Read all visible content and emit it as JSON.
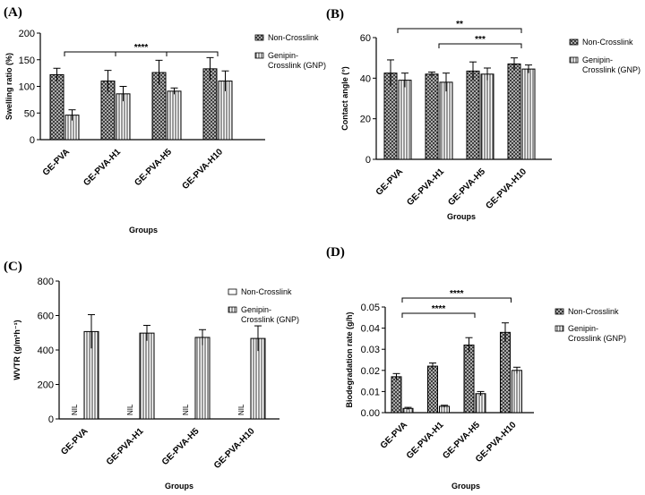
{
  "chart_data": [
    {
      "panel": "(A)",
      "type": "bar",
      "categories": [
        "GE-PVA",
        "GE-PVA-H1",
        "GE-PVA-H5",
        "GE-PVA-H10"
      ],
      "xlabel": "Groups",
      "ylabel": "Swelling ratio (%)",
      "ylim": [
        0,
        200
      ],
      "yticks": [
        "0",
        "50",
        "100",
        "150",
        "200"
      ],
      "grid": false,
      "legend_position": "right",
      "series": [
        {
          "name": "Non-Crosslink",
          "values": [
            122,
            110,
            126,
            133
          ],
          "errors": [
            12,
            20,
            23,
            21
          ],
          "color": "#555555",
          "pattern": "crosshatch"
        },
        {
          "name": "Genipin- Crosslink (GNP)",
          "values": [
            46,
            86,
            91,
            110
          ],
          "errors": [
            10,
            14,
            6,
            19
          ],
          "color": "#777777",
          "pattern": "vertical"
        }
      ],
      "significance": [
        {
          "label": "****",
          "from": 0,
          "to": 3
        }
      ]
    },
    {
      "panel": "(B)",
      "type": "bar",
      "categories": [
        "GE-PVA",
        "GE-PVA-H1",
        "GE-PVA-H5",
        "GE-PVA-H10"
      ],
      "xlabel": "Groups",
      "ylabel": "Contact angle (°)",
      "ylim": [
        0,
        60
      ],
      "yticks": [
        "0",
        "20",
        "40",
        "60"
      ],
      "grid": false,
      "legend_position": "right",
      "series": [
        {
          "name": "Non-Crosslink",
          "values": [
            42.5,
            42,
            43.5,
            47
          ],
          "errors": [
            6.5,
            1,
            4.5,
            3
          ],
          "color": "#555555",
          "pattern": "crosshatch"
        },
        {
          "name": "Genipin- Crosslink (GNP)",
          "values": [
            39,
            38,
            42,
            44.5
          ],
          "errors": [
            3.5,
            4.5,
            3,
            2
          ],
          "color": "#777777",
          "pattern": "vertical"
        }
      ],
      "significance": [
        {
          "label": "**",
          "from": 0,
          "to": 3
        },
        {
          "label": "***",
          "from": 1,
          "to": 3
        }
      ]
    },
    {
      "panel": "(C)",
      "type": "bar",
      "categories": [
        "GE-PVA",
        "GE-PVA-H1",
        "GE-PVA-H5",
        "GE-PVA-H10"
      ],
      "xlabel": "Groups",
      "ylabel": "WVTR (g/m²h⁻¹)",
      "ylim": [
        0,
        800
      ],
      "yticks": [
        "0",
        "200",
        "400",
        "600",
        "800"
      ],
      "grid": false,
      "legend_position": "right",
      "series": [
        {
          "name": "Non-Crosslink",
          "values": [
            null,
            null,
            null,
            null
          ],
          "errors": [
            0,
            0,
            0,
            0
          ],
          "color": "#555555",
          "pattern": "open",
          "value_labels": [
            "NIL",
            "NIL",
            "NIL",
            "NIL"
          ]
        },
        {
          "name": "Genipin- Crosslink (GNP)",
          "values": [
            507,
            498,
            473,
            467
          ],
          "errors": [
            98,
            45,
            45,
            73
          ],
          "color": "#777777",
          "pattern": "vertical"
        }
      ],
      "significance": []
    },
    {
      "panel": "(D)",
      "type": "bar",
      "categories": [
        "GE-PVA",
        "GE-PVA-H1",
        "GE-PVA-H5",
        "GE-PVA-H10"
      ],
      "xlabel": "Groups",
      "ylabel": "Biodegradation rate (g/h)",
      "ylim": [
        0,
        0.05
      ],
      "yticks": [
        "0.00",
        "0.01",
        "0.02",
        "0.03",
        "0.04",
        "0.05"
      ],
      "grid": false,
      "legend_position": "right",
      "series": [
        {
          "name": "Non-Crosslink",
          "values": [
            0.017,
            0.022,
            0.032,
            0.038
          ],
          "errors": [
            0.0015,
            0.0015,
            0.0035,
            0.0045
          ],
          "color": "#555555",
          "pattern": "crosshatch"
        },
        {
          "name": "Genipin- Crosslink (GNP)",
          "values": [
            0.002,
            0.003,
            0.009,
            0.02
          ],
          "errors": [
            0.0005,
            0.0005,
            0.001,
            0.0015
          ],
          "color": "#777777",
          "pattern": "vertical"
        }
      ],
      "significance": [
        {
          "label": "****",
          "from": 0,
          "to": 2
        },
        {
          "label": "****",
          "from": 0,
          "to": 3
        }
      ]
    }
  ]
}
